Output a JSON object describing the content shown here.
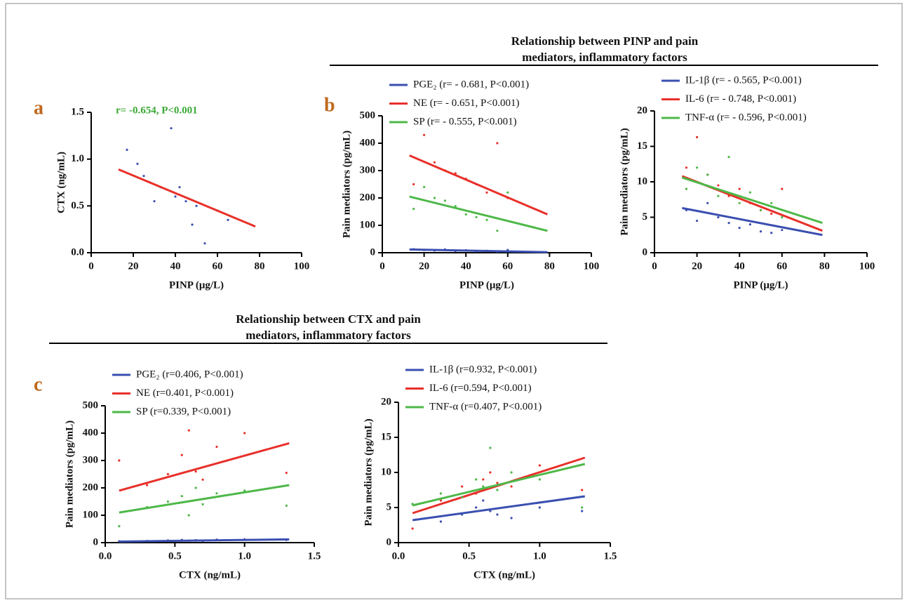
{
  "sections": [
    {
      "title_lines": [
        "Relationship between PINP and pain",
        "mediators, inflammatory factors"
      ]
    },
    {
      "title_lines": [
        "Relationship between CTX and pain",
        "mediators, inflammatory factors"
      ]
    }
  ],
  "chart_data": [
    {
      "type": "scatter",
      "panel_label": "a",
      "annotation": "r= -0.654, P<0.001",
      "annotation_color": "#3aa935",
      "xlabel": "PINP (μg/L)",
      "ylabel": "CTX (ng/mL)",
      "xlim": [
        0,
        100
      ],
      "xticks": [
        0,
        20,
        40,
        60,
        80,
        100
      ],
      "ylim": [
        0,
        1.5
      ],
      "yticks": [
        {
          "value": 0,
          "label": "0.0"
        },
        {
          "value": 0.5,
          "label": "0.5"
        },
        {
          "value": 1,
          "label": "1.0"
        },
        {
          "value": 1.5,
          "label": "1.5"
        }
      ],
      "series": [
        {
          "color": "#3a4fb0",
          "line_color": "#e8302a",
          "x": [
            17,
            22,
            28,
            33,
            38,
            40,
            45,
            50,
            54,
            60,
            65,
            30,
            25,
            42,
            48
          ],
          "values": [
            1.1,
            0.95,
            0.75,
            0.7,
            1.33,
            0.6,
            0.55,
            0.5,
            0.1,
            0.45,
            0.35,
            0.55,
            0.82,
            0.7,
            0.3
          ],
          "fit": {
            "x": [
              13,
              78
            ],
            "values": [
              0.89,
              0.28
            ]
          }
        }
      ]
    },
    {
      "type": "scatter",
      "panel_label": "b",
      "xlabel": "PINP (μg/L)",
      "ylabel": "Pain mediators (pg/mL)",
      "xlim": [
        0,
        100
      ],
      "xticks": [
        0,
        20,
        40,
        60,
        80,
        100
      ],
      "ylim": [
        0,
        500
      ],
      "yticks": [
        0,
        100,
        200,
        300,
        400,
        500
      ],
      "series": [
        {
          "name": "PGE₂ (r= - 0.681, P<0.001)",
          "color": "#3a4fb0",
          "x": [
            15,
            20,
            25,
            30,
            35,
            40,
            45,
            50,
            55,
            60
          ],
          "values": [
            13,
            10,
            8,
            12,
            6,
            9,
            5,
            7,
            4,
            10
          ],
          "fit": {
            "x": [
              13,
              79
            ],
            "values": [
              12,
              2
            ]
          }
        },
        {
          "name": "NE (r= - 0.651, P<0.001)",
          "color": "#e8302a",
          "x": [
            15,
            20,
            25,
            30,
            35,
            40,
            45,
            50,
            55,
            60
          ],
          "values": [
            250,
            430,
            330,
            300,
            290,
            270,
            250,
            220,
            400,
            200
          ],
          "fit": {
            "x": [
              13,
              79
            ],
            "values": [
              355,
              140
            ]
          }
        },
        {
          "name": "SP (r= - 0.555, P<0.001)",
          "color": "#4db848",
          "x": [
            15,
            20,
            25,
            30,
            35,
            40,
            45,
            50,
            55,
            60
          ],
          "values": [
            160,
            240,
            200,
            190,
            170,
            140,
            130,
            120,
            80,
            220
          ],
          "fit": {
            "x": [
              13,
              79
            ],
            "values": [
              205,
              80
            ]
          }
        }
      ]
    },
    {
      "type": "scatter",
      "xlabel": "PINP (μg/L)",
      "ylabel": "Pain mediators (pg/mL)",
      "xlim": [
        0,
        100
      ],
      "xticks": [
        0,
        20,
        40,
        60,
        80,
        100
      ],
      "ylim": [
        0,
        20
      ],
      "yticks": [
        0,
        5,
        10,
        15,
        20
      ],
      "series": [
        {
          "name": "IL-1β (r= - 0.565, P<0.001)",
          "color": "#3a4fb0",
          "x": [
            15,
            20,
            25,
            30,
            35,
            40,
            45,
            50,
            55,
            60
          ],
          "values": [
            6,
            4.5,
            7,
            5,
            4.2,
            3.5,
            4,
            3,
            2.8,
            3.2
          ],
          "fit": {
            "x": [
              13,
              79
            ],
            "values": [
              6.3,
              2.5
            ]
          }
        },
        {
          "name": "IL-6 (r= - 0.748, P<0.001)",
          "color": "#e8302a",
          "x": [
            15,
            20,
            25,
            30,
            35,
            40,
            45,
            50,
            55,
            60
          ],
          "values": [
            12,
            16.3,
            11,
            9.5,
            8,
            9,
            7,
            6,
            5.5,
            9
          ],
          "fit": {
            "x": [
              13,
              79
            ],
            "values": [
              10.8,
              3.1
            ]
          }
        },
        {
          "name": "TNF-α (r= - 0.596, P<0.001)",
          "color": "#4db848",
          "x": [
            15,
            20,
            25,
            30,
            35,
            40,
            45,
            50,
            55,
            60
          ],
          "values": [
            9,
            12,
            11,
            8,
            13.5,
            7,
            8.5,
            6,
            7,
            5
          ],
          "fit": {
            "x": [
              13,
              79
            ],
            "values": [
              10.6,
              4.2
            ]
          }
        }
      ]
    },
    {
      "type": "scatter",
      "panel_label": "c",
      "xlabel": "CTX (ng/mL)",
      "ylabel": "Pain mediators (pg/mL)",
      "xlim": [
        0,
        1.5
      ],
      "xticks": [
        {
          "value": 0,
          "label": "0.0"
        },
        {
          "value": 0.5,
          "label": "0.5"
        },
        {
          "value": 1,
          "label": "1.0"
        },
        {
          "value": 1.5,
          "label": "1.5"
        }
      ],
      "ylim": [
        0,
        500
      ],
      "yticks": [
        0,
        100,
        200,
        300,
        400,
        500
      ],
      "series": [
        {
          "name": "PGE₂ (r=0.406, P<0.001)",
          "color": "#3a4fb0",
          "x": [
            0.1,
            0.3,
            0.45,
            0.55,
            0.6,
            0.65,
            0.7,
            0.8,
            1,
            1.3
          ],
          "values": [
            5,
            6,
            8,
            10,
            7,
            9,
            6,
            11,
            12,
            10
          ],
          "fit": {
            "x": [
              0.1,
              1.32
            ],
            "values": [
              4,
              12
            ]
          }
        },
        {
          "name": "NE (r=0.401, P<0.001)",
          "color": "#e8302a",
          "x": [
            0.1,
            0.3,
            0.45,
            0.55,
            0.6,
            0.65,
            0.7,
            0.8,
            1,
            1.3
          ],
          "values": [
            300,
            210,
            250,
            320,
            410,
            260,
            230,
            350,
            400,
            255
          ],
          "fit": {
            "x": [
              0.1,
              1.32
            ],
            "values": [
              190,
              363
            ]
          }
        },
        {
          "name": "SP (r=0.339, P<0.001)",
          "color": "#4db848",
          "x": [
            0.1,
            0.3,
            0.45,
            0.55,
            0.6,
            0.65,
            0.7,
            0.8,
            1,
            1.3
          ],
          "values": [
            60,
            130,
            150,
            170,
            100,
            200,
            140,
            180,
            190,
            135
          ],
          "fit": {
            "x": [
              0.1,
              1.32
            ],
            "values": [
              110,
              210
            ]
          }
        }
      ]
    },
    {
      "type": "scatter",
      "xlabel": "CTX (ng/mL)",
      "ylabel": "Pain mediators (pg/mL)",
      "xlim": [
        0,
        1.5
      ],
      "xticks": [
        {
          "value": 0,
          "label": "0.0"
        },
        {
          "value": 0.5,
          "label": "0.5"
        },
        {
          "value": 1,
          "label": "1.0"
        },
        {
          "value": 1.5,
          "label": "1.5"
        }
      ],
      "ylim": [
        0,
        20
      ],
      "yticks": [
        0,
        5,
        10,
        15,
        20
      ],
      "series": [
        {
          "name": "IL-1β (r=0.932, P<0.001)",
          "color": "#3a4fb0",
          "x": [
            0.1,
            0.3,
            0.45,
            0.55,
            0.6,
            0.65,
            0.7,
            0.8,
            1,
            1.3
          ],
          "values": [
            5.5,
            3,
            4,
            5,
            6,
            4.5,
            4,
            3.5,
            5,
            4.5
          ],
          "fit": {
            "x": [
              0.1,
              1.32
            ],
            "values": [
              3.2,
              6.6
            ]
          }
        },
        {
          "name": "IL-6 (r=0.594, P<0.001)",
          "color": "#e8302a",
          "x": [
            0.1,
            0.3,
            0.45,
            0.55,
            0.6,
            0.65,
            0.7,
            0.8,
            1,
            1.3
          ],
          "values": [
            2,
            6,
            8,
            7,
            9,
            10,
            8.5,
            8,
            11,
            7.5
          ],
          "fit": {
            "x": [
              0.1,
              1.32
            ],
            "values": [
              4.2,
              12.1
            ]
          }
        },
        {
          "name": "TNF-α (r=0.407, P<0.001)",
          "color": "#4db848",
          "x": [
            0.1,
            0.3,
            0.45,
            0.55,
            0.6,
            0.65,
            0.7,
            0.8,
            1,
            1.3
          ],
          "values": [
            5.5,
            7,
            6.5,
            9,
            8,
            13.5,
            7.5,
            10,
            9,
            5
          ],
          "fit": {
            "x": [
              0.1,
              1.32
            ],
            "values": [
              5.3,
              11.2
            ]
          }
        }
      ]
    }
  ]
}
